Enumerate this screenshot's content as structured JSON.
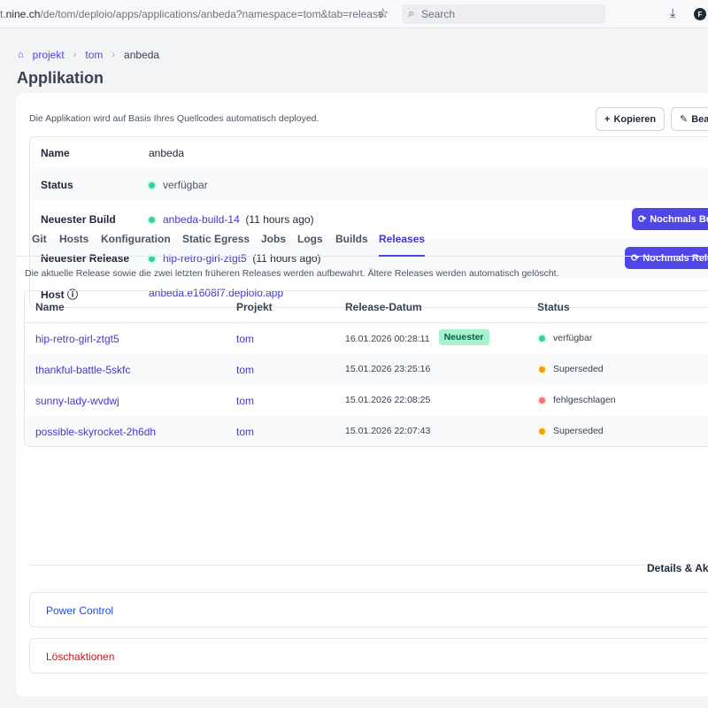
{
  "browser": {
    "url_prefix": "t.",
    "url_host": "nine.ch",
    "url_path": "/de/tom/deploio/apps/applications/anbeda?namespace=tom&tab=release",
    "search_placeholder": "Search",
    "extension_letter": "F"
  },
  "breadcrumb": [
    "projekt",
    "tom",
    "anbeda"
  ],
  "page_title": "Applikation",
  "description": "Die Applikation wird auf Basis Ihres Quellcodes automatisch deployed.",
  "actions": {
    "copy_label": "Kopieren",
    "edit_label": "Bear"
  },
  "details": {
    "name_label": "Name",
    "name_value": "anbeda",
    "status_label": "Status",
    "status_value": "verfügbar",
    "build_label": "Neuester Build",
    "build_value": "anbeda-build-14",
    "build_time": "(11 hours ago)",
    "build_button": "Nochmals Buil",
    "release_label": "Neuester Release",
    "release_value": "hip-retro-girl-ztgt5",
    "release_time": "(11 hours ago)",
    "release_button": "Nochmals Rele",
    "host_label": "Host",
    "host_value": "anbeda.e1608f7.deploio.app"
  },
  "tabs": [
    "Git",
    "Hosts",
    "Konfiguration",
    "Static Egress",
    "Jobs",
    "Logs",
    "Builds",
    "Releases"
  ],
  "active_tab": "Releases",
  "releases": {
    "description": "Die aktuelle Release sowie die zwei letzten früheren Releases werden aufbewahrt. Ältere Releases werden automatisch gelöscht.",
    "headers": {
      "name": "Name",
      "project": "Projekt",
      "date": "Release-Datum",
      "status": "Status"
    },
    "rows": [
      {
        "name": "hip-retro-girl-ztgt5",
        "project": "tom",
        "date": "16.01.2026 00:28:11",
        "badge": "Neuester",
        "status": "verfügbar",
        "color": "green"
      },
      {
        "name": "thankful-battle-5skfc",
        "project": "tom",
        "date": "15.01.2026 23:25:16",
        "badge": "",
        "status": "Superseded",
        "color": "yellow"
      },
      {
        "name": "sunny-lady-wvdwj",
        "project": "tom",
        "date": "15.01.2026 22:08:25",
        "badge": "",
        "status": "fehlgeschlagen",
        "color": "red"
      },
      {
        "name": "possible-skyrocket-2h6dh",
        "project": "tom",
        "date": "15.01.2026 22:07:43",
        "badge": "",
        "status": "Superseded",
        "color": "yellow"
      }
    ]
  },
  "details_actions_label": "Details & Akt",
  "power_control": "Power Control",
  "delete_actions": "Löschaktionen",
  "colors": {
    "accent": "#4f46e5",
    "link": "#4338ca",
    "danger": "#b91c1c",
    "success": "#34d399",
    "warning": "#f59e0b",
    "error": "#f87171"
  }
}
